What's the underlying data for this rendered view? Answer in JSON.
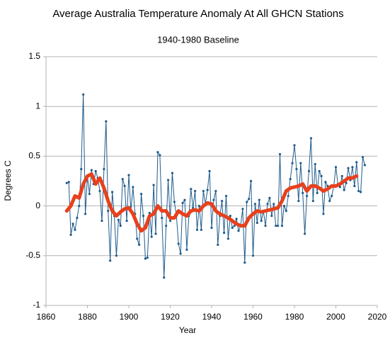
{
  "chart_data": {
    "type": "line",
    "title": "Average Australia Temperature Anomaly At All GHCN Stations",
    "subtitle": "1940-1980 Baseline",
    "x_label": "Year",
    "y_label": "Degrees C",
    "xlim": [
      1860,
      2020
    ],
    "xticks": [
      1860,
      1880,
      1900,
      1920,
      1940,
      1960,
      1980,
      2000,
      2020
    ],
    "ylim": [
      -1,
      1.5
    ],
    "yticks": [
      -1,
      -0.5,
      0,
      0.5,
      1,
      1.5
    ],
    "grid": true,
    "series": [
      {
        "color": "#1f5b8c",
        "markers": true,
        "x": [
          1870,
          1871,
          1872,
          1873,
          1874,
          1875,
          1876,
          1877,
          1878,
          1879,
          1880,
          1881,
          1882,
          1883,
          1884,
          1885,
          1886,
          1887,
          1888,
          1889,
          1890,
          1891,
          1892,
          1893,
          1894,
          1895,
          1896,
          1897,
          1898,
          1899,
          1900,
          1901,
          1902,
          1903,
          1904,
          1905,
          1906,
          1907,
          1908,
          1909,
          1910,
          1911,
          1912,
          1913,
          1914,
          1915,
          1916,
          1917,
          1918,
          1919,
          1920,
          1921,
          1922,
          1923,
          1924,
          1925,
          1926,
          1927,
          1928,
          1929,
          1930,
          1931,
          1932,
          1933,
          1934,
          1935,
          1936,
          1937,
          1938,
          1939,
          1940,
          1941,
          1942,
          1943,
          1944,
          1945,
          1946,
          1947,
          1948,
          1949,
          1950,
          1951,
          1952,
          1953,
          1954,
          1955,
          1956,
          1957,
          1958,
          1959,
          1960,
          1961,
          1962,
          1963,
          1964,
          1965,
          1966,
          1967,
          1968,
          1969,
          1970,
          1971,
          1972,
          1973,
          1974,
          1975,
          1976,
          1977,
          1978,
          1979,
          1980,
          1981,
          1982,
          1983,
          1984,
          1985,
          1986,
          1987,
          1988,
          1989,
          1990,
          1991,
          1992,
          1993,
          1994,
          1995,
          1996,
          1997,
          1998,
          1999,
          2000,
          2001,
          2002,
          2003,
          2004,
          2005,
          2006,
          2007,
          2008,
          2009,
          2010,
          2011,
          2012,
          2013,
          2014
        ],
        "values": [
          0.23,
          0.24,
          -0.29,
          -0.18,
          -0.24,
          -0.12,
          0.0,
          0.37,
          1.12,
          -0.08,
          0.3,
          0.12,
          0.36,
          0.22,
          0.35,
          0.28,
          0.15,
          -0.15,
          0.37,
          0.85,
          -0.05,
          -0.55,
          0.14,
          -0.1,
          -0.5,
          -0.14,
          -0.2,
          0.27,
          0.2,
          -0.15,
          0.31,
          -0.05,
          0.19,
          -0.08,
          -0.33,
          -0.39,
          0.12,
          -0.1,
          -0.53,
          -0.52,
          -0.07,
          -0.31,
          0.21,
          -0.28,
          0.54,
          0.51,
          -0.12,
          -0.72,
          -0.2,
          0.26,
          -0.15,
          0.33,
          0.04,
          -0.1,
          -0.38,
          -0.48,
          0.03,
          0.06,
          -0.44,
          -0.1,
          0.17,
          -0.02,
          0.15,
          -0.24,
          0.0,
          -0.24,
          0.15,
          0.02,
          0.16,
          0.35,
          -0.22,
          0.06,
          0.15,
          -0.39,
          -0.1,
          0.05,
          -0.27,
          0.1,
          -0.33,
          -0.1,
          -0.22,
          -0.2,
          -0.13,
          -0.25,
          -0.2,
          -0.03,
          -0.57,
          0.04,
          0.07,
          0.25,
          -0.5,
          0.02,
          -0.17,
          0.06,
          -0.15,
          -0.05,
          -0.2,
          0.02,
          0.08,
          -0.1,
          0.02,
          -0.2,
          -0.2,
          0.52,
          -0.2,
          0.0,
          -0.05,
          0.1,
          0.27,
          0.43,
          0.61,
          0.37,
          0.05,
          0.43,
          0.13,
          -0.28,
          0.1,
          0.35,
          0.68,
          0.05,
          0.42,
          0.13,
          0.35,
          0.3,
          -0.08,
          0.24,
          0.2,
          0.05,
          0.1,
          0.2,
          0.39,
          0.22,
          0.19,
          0.3,
          0.16,
          0.23,
          0.38,
          0.26,
          0.39,
          0.2,
          0.44,
          0.15,
          0.14,
          0.49,
          0.41
        ]
      },
      {
        "color": "#e8401c",
        "markers": false,
        "x": [
          1870,
          1872,
          1874,
          1876,
          1878,
          1880,
          1882,
          1884,
          1886,
          1888,
          1890,
          1892,
          1894,
          1896,
          1898,
          1900,
          1902,
          1904,
          1906,
          1908,
          1910,
          1912,
          1914,
          1916,
          1918,
          1920,
          1922,
          1924,
          1926,
          1928,
          1930,
          1932,
          1934,
          1936,
          1938,
          1940,
          1942,
          1944,
          1946,
          1948,
          1950,
          1952,
          1954,
          1956,
          1958,
          1960,
          1962,
          1964,
          1966,
          1968,
          1970,
          1972,
          1974,
          1976,
          1978,
          1980,
          1982,
          1984,
          1986,
          1988,
          1990,
          1992,
          1994,
          1996,
          1998,
          2000,
          2002,
          2004,
          2006,
          2008,
          2010
        ],
        "values": [
          -0.05,
          0.0,
          0.1,
          0.08,
          0.22,
          0.3,
          0.32,
          0.22,
          0.28,
          0.18,
          0.05,
          -0.05,
          -0.1,
          -0.06,
          -0.03,
          -0.02,
          -0.08,
          -0.18,
          -0.25,
          -0.22,
          -0.1,
          -0.08,
          0.0,
          -0.05,
          -0.05,
          -0.12,
          -0.12,
          -0.05,
          -0.08,
          -0.1,
          -0.05,
          -0.04,
          -0.05,
          0.0,
          0.03,
          0.02,
          -0.05,
          -0.08,
          -0.1,
          -0.12,
          -0.15,
          -0.18,
          -0.2,
          -0.2,
          -0.12,
          -0.08,
          -0.05,
          -0.06,
          -0.05,
          -0.04,
          -0.03,
          -0.02,
          0.05,
          0.15,
          0.18,
          0.19,
          0.2,
          0.22,
          0.15,
          0.2,
          0.2,
          0.18,
          0.15,
          0.17,
          0.2,
          0.2,
          0.22,
          0.25,
          0.28,
          0.28,
          0.3
        ]
      }
    ]
  }
}
